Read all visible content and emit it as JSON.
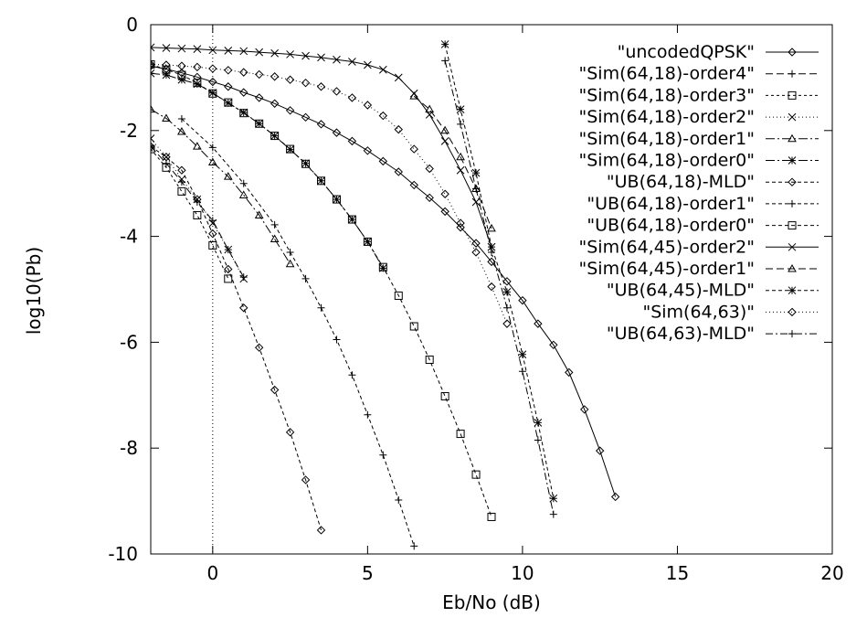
{
  "chart_data": {
    "type": "line",
    "xlabel": "Eb/No (dB)",
    "ylabel": "log10(Pb)",
    "xlim": [
      -2,
      20
    ],
    "ylim": [
      -10,
      0
    ],
    "xticks": [
      0,
      5,
      10,
      15,
      20
    ],
    "yticks": [
      0,
      -2,
      -4,
      -6,
      -8,
      -10
    ],
    "xtick_labels": [
      "0",
      "5",
      "10",
      "15",
      "20"
    ],
    "ytick_labels": [
      "0",
      "-2",
      "-4",
      "-6",
      "-8",
      "-10"
    ],
    "grid": false,
    "vertical_reference_line_x": 0,
    "legend_placement": "top-right",
    "series": [
      {
        "name": "\"uncodedQPSK\"",
        "marker": "diamond",
        "dash": "none",
        "x": [
          -2,
          -1.5,
          -1,
          -0.5,
          0,
          0.5,
          1,
          1.5,
          2,
          2.5,
          3,
          3.5,
          4,
          4.5,
          5,
          5.5,
          6,
          6.5,
          7,
          7.5,
          8,
          8.5,
          9,
          9.5,
          10,
          10.5,
          11,
          11.5,
          12,
          12.5,
          13
        ],
        "y": [
          -0.78,
          -0.84,
          -0.91,
          -0.99,
          -1.08,
          -1.17,
          -1.28,
          -1.38,
          -1.49,
          -1.62,
          -1.75,
          -1.88,
          -2.04,
          -2.2,
          -2.38,
          -2.58,
          -2.78,
          -3.03,
          -3.27,
          -3.53,
          -3.83,
          -4.13,
          -4.48,
          -4.85,
          -5.21,
          -5.65,
          -6.05,
          -6.57,
          -7.27,
          -8.05,
          -8.92
        ]
      },
      {
        "name": "\"Sim(64,18)-order4\"",
        "marker": "plus",
        "dash": "8,4",
        "x": [
          -2,
          -1.5,
          -1,
          -0.5,
          0,
          0.5,
          1
        ],
        "y": [
          -2.3,
          -2.62,
          -2.97,
          -3.35,
          -3.7,
          -4.25,
          -4.77
        ]
      },
      {
        "name": "\"Sim(64,18)-order3\"",
        "marker": "square",
        "dash": "3,3",
        "x": [
          -2,
          -1.5,
          -1,
          -0.5,
          0,
          0.5
        ],
        "y": [
          -2.35,
          -2.7,
          -3.15,
          -3.6,
          -4.17,
          -4.8
        ]
      },
      {
        "name": "\"Sim(64,18)-order2\"",
        "marker": "cross",
        "dash": "1,3",
        "x": [
          -2,
          -1.5,
          -1,
          -0.5,
          0,
          0.5,
          1
        ],
        "y": [
          -2.15,
          -2.5,
          -2.92,
          -3.3,
          -3.75,
          -4.25,
          -4.8
        ]
      },
      {
        "name": "\"Sim(64,18)-order1\"",
        "marker": "triangle",
        "dash": "10,3,2,3",
        "x": [
          -2,
          -1.5,
          -1,
          -0.5,
          0,
          0.5,
          1,
          1.5,
          2,
          2.5
        ],
        "y": [
          -1.6,
          -1.77,
          -2.02,
          -2.3,
          -2.6,
          -2.87,
          -3.22,
          -3.6,
          -4.05,
          -4.52
        ]
      },
      {
        "name": "\"Sim(64,18)-order0\"",
        "marker": "star",
        "dash": "10,3,2,3",
        "x": [
          -2,
          -1.5,
          -1,
          -0.5,
          0,
          0.5,
          1,
          1.5,
          2,
          2.5,
          3,
          3.5,
          4,
          4.5,
          5,
          5.5
        ],
        "y": [
          -0.92,
          -0.95,
          -1.04,
          -1.12,
          -1.29,
          -1.48,
          -1.66,
          -1.87,
          -2.1,
          -2.36,
          -2.62,
          -2.95,
          -3.3,
          -3.68,
          -4.1,
          -4.6
        ]
      },
      {
        "name": "\"UB(64,18)-MLD\"",
        "marker": "diamond",
        "dash": "4,3",
        "x": [
          -2,
          -1.5,
          -1,
          -0.5,
          0,
          0.5,
          1,
          1.5,
          2,
          2.5,
          3,
          3.5
        ],
        "y": [
          -2.3,
          -2.5,
          -2.75,
          -3.3,
          -3.95,
          -4.62,
          -5.35,
          -6.1,
          -6.9,
          -7.7,
          -8.6,
          -9.55
        ]
      },
      {
        "name": "\"UB(64,18)-order1\"",
        "marker": "plus",
        "dash": "4,3",
        "x": [
          -1,
          0,
          1,
          2,
          2.5,
          3,
          3.5,
          4,
          4.5,
          5,
          5.5,
          6,
          6.5
        ],
        "y": [
          -1.78,
          -2.32,
          -3.0,
          -3.78,
          -4.3,
          -4.8,
          -5.35,
          -5.95,
          -6.62,
          -7.37,
          -8.13,
          -8.98,
          -9.85
        ]
      },
      {
        "name": "\"UB(64,18)-order0\"",
        "marker": "square",
        "dash": "4,3",
        "x": [
          -2,
          -1.5,
          -1,
          -0.5,
          0,
          0.5,
          1,
          1.5,
          2,
          2.5,
          3,
          3.5,
          4,
          4.5,
          5,
          5.5,
          6,
          6.5,
          7,
          7.5,
          8,
          8.5,
          9
        ],
        "y": [
          -0.75,
          -0.85,
          -0.95,
          -1.1,
          -1.3,
          -1.47,
          -1.67,
          -1.87,
          -2.1,
          -2.35,
          -2.63,
          -2.95,
          -3.3,
          -3.68,
          -4.1,
          -4.58,
          -5.12,
          -5.7,
          -6.33,
          -7.02,
          -7.73,
          -8.5,
          -9.3
        ]
      },
      {
        "name": "\"Sim(64,45)-order2\"",
        "marker": "cross",
        "dash": "none",
        "x": [
          -2,
          -1.5,
          -1,
          -0.5,
          0,
          0.5,
          1,
          1.5,
          2,
          2.5,
          3,
          3.5,
          4,
          4.5,
          5,
          5.5,
          6,
          6.5,
          7,
          7.5,
          8,
          8.5,
          9
        ],
        "y": [
          -0.43,
          -0.44,
          -0.45,
          -0.46,
          -0.48,
          -0.49,
          -0.5,
          -0.52,
          -0.54,
          -0.56,
          -0.59,
          -0.62,
          -0.66,
          -0.7,
          -0.76,
          -0.85,
          -1.0,
          -1.3,
          -1.7,
          -2.2,
          -2.75,
          -3.35,
          -4.2
        ]
      },
      {
        "name": "\"Sim(64,45)-order1\"",
        "marker": "triangle",
        "dash": "8,4",
        "x": [
          6.5,
          7,
          7.5,
          8,
          8.5,
          9
        ],
        "y": [
          -1.35,
          -1.6,
          -2.0,
          -2.5,
          -3.1,
          -3.85
        ]
      },
      {
        "name": "\"UB(64,45)-MLD\"",
        "marker": "star",
        "dash": "4,3",
        "x": [
          7.5,
          8,
          8.5,
          9,
          9.5,
          10,
          10.5,
          11
        ],
        "y": [
          -0.37,
          -1.6,
          -2.8,
          -4.2,
          -5.05,
          -6.23,
          -7.52,
          -8.95
        ]
      },
      {
        "name": "\"Sim(64,63)\"",
        "marker": "diamond",
        "dash": "1,3",
        "x": [
          -2,
          -1.5,
          -1,
          -0.5,
          0,
          0.5,
          1,
          1.5,
          2,
          2.5,
          3,
          3.5,
          4,
          4.5,
          5,
          5.5,
          6,
          6.5,
          7,
          7.5,
          8,
          8.5,
          9,
          9.5
        ],
        "y": [
          -0.75,
          -0.76,
          -0.78,
          -0.8,
          -0.83,
          -0.86,
          -0.9,
          -0.94,
          -0.98,
          -1.04,
          -1.1,
          -1.17,
          -1.26,
          -1.38,
          -1.52,
          -1.72,
          -1.98,
          -2.35,
          -2.72,
          -3.2,
          -3.75,
          -4.3,
          -4.95,
          -5.65
        ]
      },
      {
        "name": "\"UB(64,63)-MLD\"",
        "marker": "plus",
        "dash": "8,3,2,3",
        "x": [
          7.5,
          8,
          8.5,
          9,
          9.5,
          10,
          10.5,
          11
        ],
        "y": [
          -0.68,
          -1.88,
          -3.1,
          -4.3,
          -5.35,
          -6.55,
          -7.85,
          -9.25
        ]
      }
    ]
  }
}
